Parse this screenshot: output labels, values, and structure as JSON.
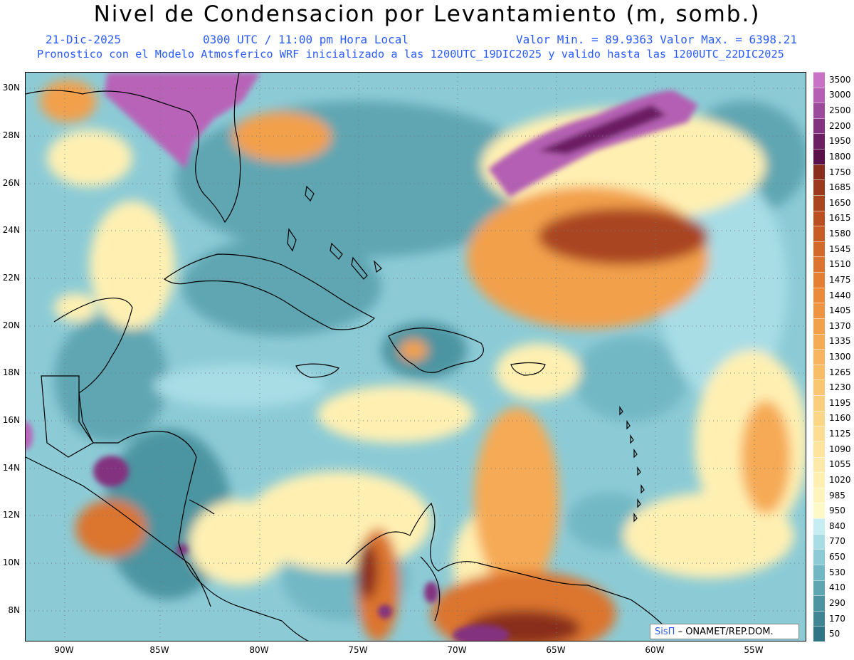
{
  "header": {
    "title": "Nivel de Condensacion por Levantamiento (m, somb.)",
    "date": "21-Dic-2025",
    "time": "0300 UTC / 11:00 pm Hora Local",
    "min_max": "Valor Min. = 89.9363  Valor Max. = 6398.21",
    "forecast_info": "Pronostico con el Modelo Atmosferico WRF inicializado a las 1200UTC_19DIC2025 y valido hasta las  1200UTC_22DIC2025"
  },
  "map": {
    "lat_labels": [
      "30N",
      "28N",
      "26N",
      "24N",
      "22N",
      "20N",
      "18N",
      "16N",
      "14N",
      "12N",
      "10N",
      "8N"
    ],
    "lon_labels": [
      "90W",
      "85W",
      "80W",
      "75W",
      "70W",
      "65W",
      "60W",
      "55W"
    ],
    "colors": {
      "very_low": "#4e9ba6",
      "low": "#73b9c4",
      "mid_low": "#a7dce6",
      "neutral": "#ffec9a",
      "mid_high": "#f2b35c",
      "high": "#d27a2e",
      "very_high": "#8f3a1a",
      "extreme": "#6b1f47",
      "top": "#b864b8"
    }
  },
  "colorbar": {
    "levels": [
      "3500",
      "3000",
      "2500",
      "2200",
      "1950",
      "1800",
      "1750",
      "1685",
      "1650",
      "1615",
      "1580",
      "1545",
      "1510",
      "1475",
      "1440",
      "1405",
      "1370",
      "1335",
      "1300",
      "1265",
      "1230",
      "1195",
      "1160",
      "1125",
      "1090",
      "1055",
      "1020",
      "985",
      "950",
      "840",
      "770",
      "650",
      "530",
      "410",
      "290",
      "170",
      "50"
    ],
    "colors": [
      "#c873c6",
      "#b45fb3",
      "#9c4a9c",
      "#83327f",
      "#6c1f63",
      "#5a1049",
      "#8a2d1e",
      "#9b3a1f",
      "#aa4520",
      "#b95022",
      "#c75c25",
      "#d2682a",
      "#dc742f",
      "#e47f34",
      "#ea8a3a",
      "#ef9542",
      "#f3a04b",
      "#f6aa54",
      "#f8b45e",
      "#f9bd68",
      "#fac672",
      "#fbce7d",
      "#fcd687",
      "#fddd92",
      "#fee49d",
      "#feeaa8",
      "#fff0b2",
      "#fff4bc",
      "#fff8c8",
      "#c6eef2",
      "#a8dde6",
      "#8ccbd6",
      "#72b8c4",
      "#5ea6b2",
      "#4c94a1",
      "#3f8593",
      "#2f7585"
    ]
  },
  "credit": {
    "brand": "SisΠ",
    "text": "– ONAMET/REP.DOM."
  }
}
